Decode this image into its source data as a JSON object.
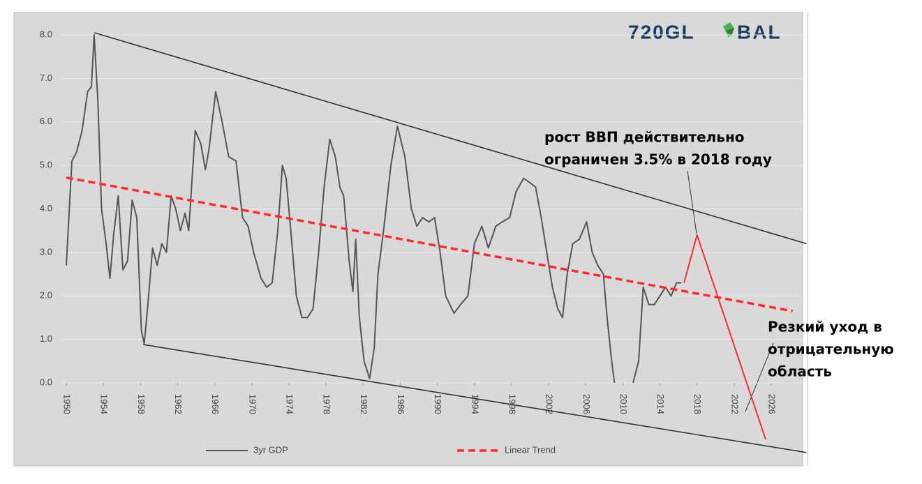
{
  "chart_data": {
    "type": "line",
    "logo": [
      "720GL",
      "BAL"
    ],
    "xlim": [
      1950,
      2026
    ],
    "ylim": [
      0,
      8
    ],
    "xticks": [
      1950,
      1954,
      1958,
      1962,
      1966,
      1970,
      1974,
      1978,
      1982,
      1986,
      1990,
      1994,
      1998,
      2002,
      2006,
      2010,
      2014,
      2018,
      2022,
      2026
    ],
    "yticks": [
      {
        "value": 0,
        "label": "0.0"
      },
      {
        "value": 1,
        "label": "1.0"
      },
      {
        "value": 2,
        "label": "2.0"
      },
      {
        "value": 3,
        "label": "3.0"
      },
      {
        "value": 4,
        "label": "4.0"
      },
      {
        "value": 5,
        "label": "5.0"
      },
      {
        "value": 6,
        "label": "6.0"
      },
      {
        "value": 7,
        "label": "7.0"
      },
      {
        "value": 8,
        "label": "8.0"
      }
    ],
    "grid": true,
    "legend": "bottom",
    "series": [
      {
        "name": "3yr GDP",
        "color": "#555555",
        "style": "solid",
        "x": [
          1950,
          1950.6,
          1951.1,
          1951.7,
          1952.3,
          1952.7,
          1953.0,
          1953.4,
          1953.8,
          1954.3,
          1954.7,
          1955.1,
          1955.6,
          1956.1,
          1956.6,
          1957.1,
          1957.6,
          1958.1,
          1958.4,
          1958.8,
          1959.3,
          1959.8,
          1960.3,
          1960.8,
          1961.3,
          1961.8,
          1962.3,
          1962.8,
          1963.2,
          1963.9,
          1964.5,
          1965.0,
          1965.4,
          1966.1,
          1966.8,
          1967.5,
          1968.3,
          1969.0,
          1969.6,
          1970.2,
          1971.0,
          1971.6,
          1972.2,
          1972.8,
          1973.3,
          1973.7,
          1974.2,
          1974.8,
          1975.4,
          1976.0,
          1976.6,
          1977.2,
          1977.8,
          1978.4,
          1979.0,
          1979.5,
          1979.9,
          1980.5,
          1980.9,
          1981.2,
          1981.6,
          1982.1,
          1982.7,
          1983.2,
          1983.6,
          1984.2,
          1985.0,
          1985.7,
          1986.5,
          1987.2,
          1987.8,
          1988.4,
          1989.1,
          1989.7,
          1990.3,
          1990.9,
          1991.8,
          1992.5,
          1993.3,
          1994.0,
          1994.8,
          1995.5,
          1996.3,
          1997.0,
          1997.8,
          1998.5,
          1999.3,
          2000.0,
          2000.6,
          2001.2,
          2001.8,
          2002.4,
          2003.0,
          2003.5,
          2004.0,
          2004.6,
          2005.3,
          2006.1,
          2006.7,
          2007.3,
          2007.9,
          2008.3,
          2008.8,
          2009.1,
          2010.1,
          2011.1,
          2011.7,
          2012.2,
          2012.8,
          2013.4,
          2014.0,
          2014.6,
          2015.2,
          2015.8,
          2016.3
        ],
        "values": [
          2.7,
          5.1,
          5.3,
          5.8,
          6.7,
          6.8,
          8.0,
          6.5,
          4.0,
          3.2,
          2.4,
          3.4,
          4.3,
          2.6,
          2.8,
          4.2,
          3.8,
          1.2,
          0.9,
          1.8,
          3.1,
          2.7,
          3.2,
          3.0,
          4.3,
          4.0,
          3.5,
          3.9,
          3.5,
          5.8,
          5.5,
          4.9,
          5.4,
          6.7,
          6.0,
          5.2,
          5.1,
          3.8,
          3.6,
          3.0,
          2.4,
          2.2,
          2.3,
          3.5,
          5.0,
          4.7,
          3.5,
          2.0,
          1.5,
          1.5,
          1.7,
          3.0,
          4.5,
          5.6,
          5.2,
          4.5,
          4.3,
          2.8,
          2.1,
          3.3,
          1.5,
          0.5,
          0.1,
          0.8,
          2.5,
          3.5,
          5.0,
          5.9,
          5.2,
          4.0,
          3.6,
          3.8,
          3.7,
          3.8,
          3.0,
          2.0,
          1.6,
          1.8,
          2.0,
          3.2,
          3.6,
          3.1,
          3.6,
          3.7,
          3.8,
          4.4,
          4.7,
          4.6,
          4.5,
          3.8,
          3.0,
          2.2,
          1.7,
          1.5,
          2.5,
          3.2,
          3.3,
          3.7,
          3.0,
          2.7,
          2.5,
          1.5,
          0.5,
          0.0,
          null,
          0.0,
          0.5,
          2.2,
          1.8,
          1.8,
          2.0,
          2.2,
          2.0,
          2.3,
          2.3
        ]
      },
      {
        "name": "Linear Trend",
        "color": "#ff2a2a",
        "style": "dashed",
        "x": [
          1950,
          2028.3
        ],
        "values": [
          4.72,
          1.65
        ]
      },
      {
        "color": "#ff2a2a",
        "style": "solid",
        "x": [
          2016.6,
          2018.0,
          2025.4
        ],
        "values": [
          2.3,
          3.4,
          -1.3
        ]
      },
      {
        "color": "#333333",
        "style": "channel",
        "x": [
          1953.0,
          2029.8
        ],
        "values": [
          8.05,
          3.2
        ]
      },
      {
        "color": "#333333",
        "style": "channel",
        "x": [
          1958.3,
          2029.8
        ],
        "values": [
          0.88,
          -1.6
        ]
      }
    ],
    "annotations": [
      {
        "lines": [
          "рост ВВП действительно",
          "ограничен 3.5% в 2018 году"
        ]
      },
      {
        "lines": [
          "Резкий уход в",
          "отрицательную",
          "область"
        ]
      }
    ]
  }
}
